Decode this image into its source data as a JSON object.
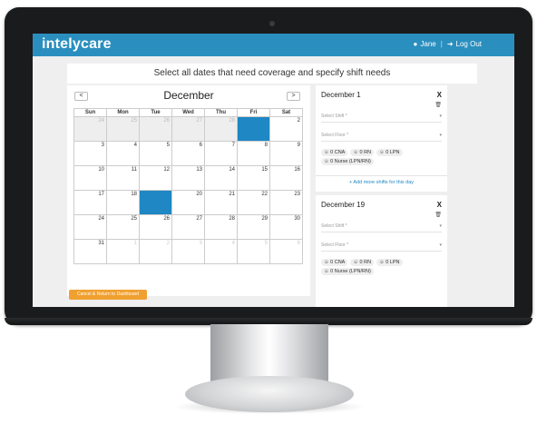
{
  "app": {
    "logo": "intelycare"
  },
  "header": {
    "user_icon": "user-icon",
    "user_name": "Jane",
    "separator": "|",
    "logout_icon": "logout-icon",
    "logout_label": "Log Out"
  },
  "page": {
    "title": "Select all dates that need coverage and specify shift needs"
  },
  "calendar": {
    "month": "December",
    "prev": "<",
    "next": ">",
    "weekdays": [
      "Sun",
      "Mon",
      "Tue",
      "Wed",
      "Thu",
      "Fri",
      "Sat"
    ],
    "weeks": [
      [
        "24",
        "25",
        "26",
        "27",
        "28",
        "1",
        "2"
      ],
      [
        "3",
        "4",
        "5",
        "6",
        "7",
        "8",
        "9"
      ],
      [
        "10",
        "11",
        "12",
        "13",
        "14",
        "15",
        "16"
      ],
      [
        "17",
        "18",
        "19",
        "20",
        "21",
        "22",
        "23"
      ],
      [
        "24",
        "25",
        "26",
        "27",
        "28",
        "29",
        "30"
      ],
      [
        "31",
        "1",
        "2",
        "3",
        "4",
        "5",
        "6"
      ]
    ],
    "selected_dates": [
      "1",
      "19"
    ],
    "colors": {
      "selected": "#1e87c4",
      "brand": "#2a8fbf",
      "action": "#f0a030"
    }
  },
  "shift_cards": [
    {
      "title": "December 1",
      "close": "X",
      "shift_placeholder": "Select Shift *",
      "floor_placeholder": "Select Floor *",
      "chips": [
        "0 CNA",
        "0 RN",
        "0 LPN",
        "0 Nurse (LPN/RN)"
      ],
      "add_link": "+ Add more shifts for this day"
    },
    {
      "title": "December 19",
      "close": "X",
      "shift_placeholder": "Select Shift *",
      "floor_placeholder": "Select Floor *",
      "chips": [
        "0 CNA",
        "0 RN",
        "0 LPN",
        "0 Nurse (LPN/RN)"
      ]
    }
  ],
  "footer": {
    "cancel_label": "Cancel & Return to Dashboard"
  }
}
